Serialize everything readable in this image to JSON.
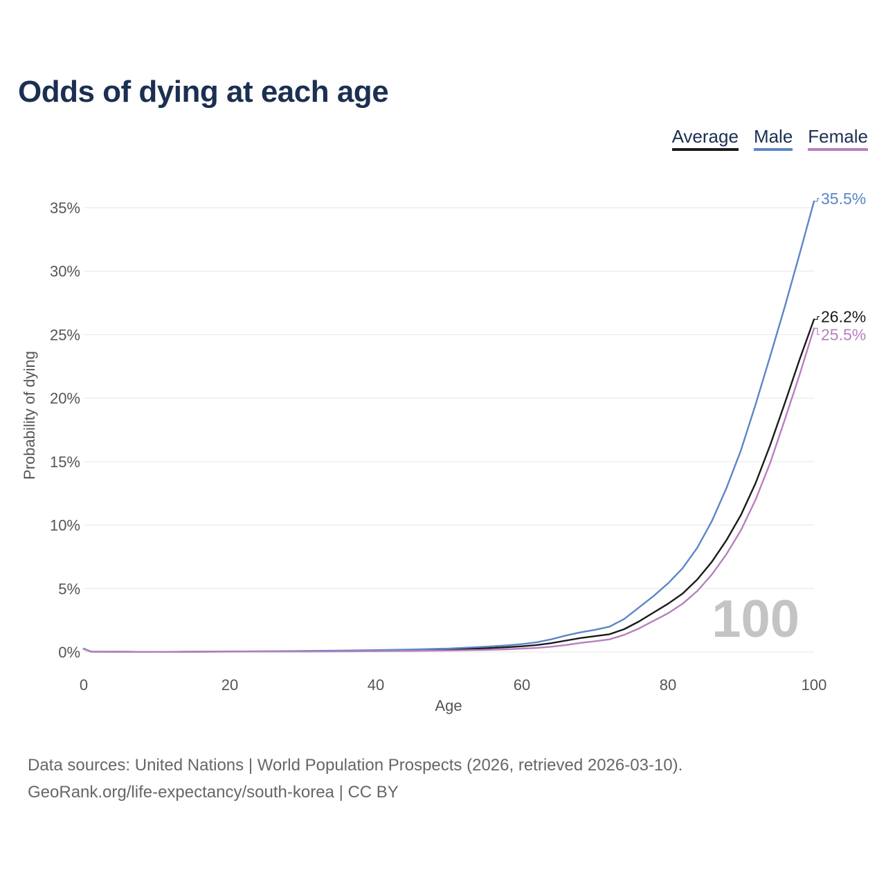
{
  "title": "Odds of dying at each age",
  "legend": {
    "items": [
      {
        "label": "Average",
        "color": "#1a1a1a"
      },
      {
        "label": "Male",
        "color": "#5b85c6"
      },
      {
        "label": "Female",
        "color": "#b77fbd"
      }
    ]
  },
  "footer": {
    "line1": "Data sources: United Nations | World Population Prospects (2026, retrieved 2026-03-10).",
    "line2": "GeoRank.org/life-expectancy/south-korea | CC BY"
  },
  "chart_data": {
    "type": "line",
    "xlabel": "Age",
    "ylabel": "Probability of dying",
    "xlim": [
      0,
      100
    ],
    "ylim": [
      0,
      35
    ],
    "xticks": [
      0,
      20,
      40,
      60,
      80,
      100
    ],
    "yticks": [
      0,
      5,
      10,
      15,
      20,
      25,
      30,
      35
    ],
    "ytick_labels": [
      "0%",
      "5%",
      "10%",
      "15%",
      "20%",
      "25%",
      "30%",
      "35%"
    ],
    "grid": true,
    "watermark": "100",
    "x": [
      0,
      1,
      5,
      10,
      15,
      20,
      25,
      30,
      35,
      40,
      45,
      50,
      55,
      58,
      60,
      62,
      64,
      66,
      68,
      70,
      72,
      74,
      76,
      78,
      80,
      82,
      84,
      86,
      88,
      90,
      92,
      94,
      96,
      98,
      100
    ],
    "series": [
      {
        "name": "Average",
        "color": "#1a1a1a",
        "end_label": "26.2%",
        "values": [
          0.25,
          0.03,
          0.02,
          0.01,
          0.02,
          0.04,
          0.05,
          0.06,
          0.08,
          0.11,
          0.15,
          0.21,
          0.3,
          0.38,
          0.45,
          0.55,
          0.7,
          0.9,
          1.1,
          1.25,
          1.4,
          1.8,
          2.4,
          3.1,
          3.8,
          4.6,
          5.7,
          7.1,
          8.8,
          10.8,
          13.3,
          16.3,
          19.6,
          23.0,
          26.2
        ]
      },
      {
        "name": "Male",
        "color": "#5b85c6",
        "end_label": "35.5%",
        "values": [
          0.27,
          0.03,
          0.02,
          0.01,
          0.03,
          0.05,
          0.06,
          0.08,
          0.11,
          0.15,
          0.2,
          0.28,
          0.42,
          0.53,
          0.62,
          0.77,
          1.0,
          1.3,
          1.55,
          1.75,
          2.0,
          2.6,
          3.5,
          4.4,
          5.4,
          6.6,
          8.2,
          10.3,
          12.9,
          15.9,
          19.5,
          23.3,
          27.2,
          31.3,
          35.5
        ]
      },
      {
        "name": "Female",
        "color": "#b77fbd",
        "end_label": "25.5%",
        "values": [
          0.23,
          0.03,
          0.02,
          0.01,
          0.02,
          0.03,
          0.04,
          0.04,
          0.05,
          0.07,
          0.09,
          0.12,
          0.17,
          0.22,
          0.27,
          0.32,
          0.42,
          0.55,
          0.72,
          0.85,
          1.0,
          1.35,
          1.85,
          2.45,
          3.05,
          3.8,
          4.8,
          6.1,
          7.7,
          9.6,
          12.0,
          14.9,
          18.3,
          21.8,
          25.5
        ]
      }
    ]
  }
}
